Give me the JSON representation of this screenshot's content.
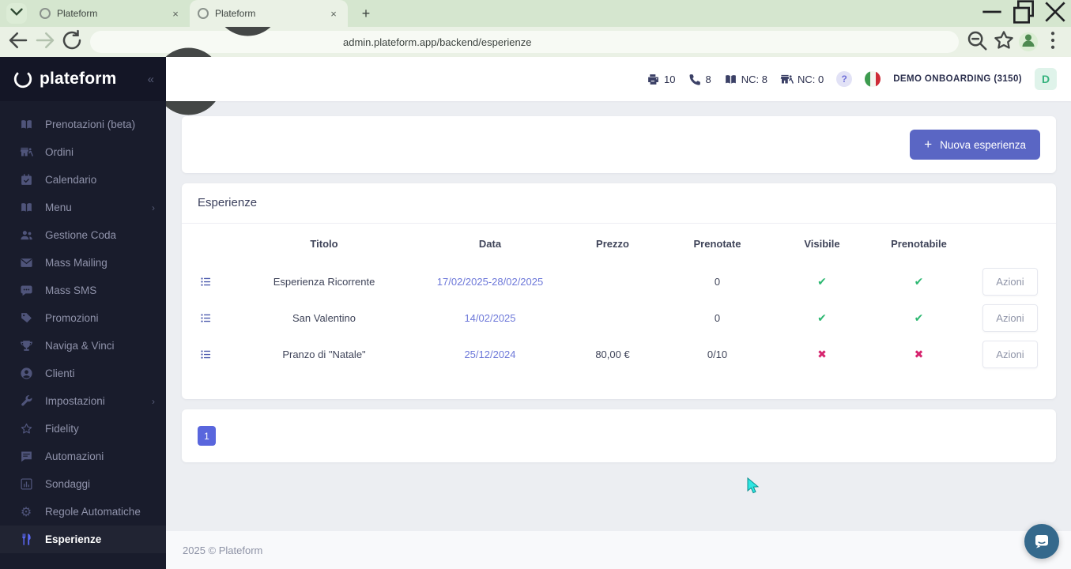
{
  "browser": {
    "tabs": [
      {
        "title": "Plateform"
      },
      {
        "title": "Plateform"
      }
    ],
    "url": "admin.plateform.app/backend/esperienze"
  },
  "sidebar": {
    "logo_text": "plateform",
    "collapse_glyph": "«",
    "items": [
      {
        "label": "Prenotazioni (beta)",
        "icon": "book"
      },
      {
        "label": "Ordini",
        "icon": "shop-walk"
      },
      {
        "label": "Calendario",
        "icon": "calendar"
      },
      {
        "label": "Menu",
        "icon": "book",
        "chevron": "›"
      },
      {
        "label": "Gestione Coda",
        "icon": "users"
      },
      {
        "label": "Mass Mailing",
        "icon": "envelope"
      },
      {
        "label": "Mass SMS",
        "icon": "chat"
      },
      {
        "label": "Promozioni",
        "icon": "tag"
      },
      {
        "label": "Naviga & Vinci",
        "icon": "trophy"
      },
      {
        "label": "Clienti",
        "icon": "user-circle"
      },
      {
        "label": "Impostazioni",
        "icon": "wrench",
        "chevron": "›"
      },
      {
        "label": "Fidelity",
        "icon": "star"
      },
      {
        "label": "Automazioni",
        "icon": "message-square"
      },
      {
        "label": "Sondaggi",
        "icon": "bar-chart"
      },
      {
        "label": "Regole Automatiche",
        "icon": "gear"
      },
      {
        "label": "Esperienze",
        "icon": "restaurant",
        "active": true
      }
    ]
  },
  "topbar": {
    "stats": [
      {
        "icon": "pos-printer",
        "value": "10"
      },
      {
        "icon": "phone",
        "value": "8"
      },
      {
        "icon": "book",
        "value": "NC: 8"
      },
      {
        "icon": "shop-walk",
        "value": "NC: 0"
      }
    ],
    "help_label": "?",
    "flag": "italy",
    "account_name": "DEMO ONBOARDING (3150)",
    "avatar_letter": "D"
  },
  "toolbar_card": {
    "new_button_label": "Nuova esperienza",
    "plus_glyph": "+"
  },
  "table_card": {
    "title": "Esperienze",
    "columns": [
      "Titolo",
      "Data",
      "Prezzo",
      "Prenotate",
      "Visibile",
      "Prenotabile"
    ],
    "rows": [
      {
        "titolo": "Esperienza Ricorrente",
        "data": "17/02/2025-28/02/2025",
        "prezzo": "",
        "prenotate": "0",
        "visibile": true,
        "prenotabile": true,
        "azioni_label": "Azioni"
      },
      {
        "titolo": "San Valentino",
        "data": "14/02/2025",
        "prezzo": "",
        "prenotate": "0",
        "visibile": true,
        "prenotabile": true,
        "azioni_label": "Azioni"
      },
      {
        "titolo": "Pranzo di \"Natale\"",
        "data": "25/12/2024",
        "prezzo": "80,00 €",
        "prenotate": "0/10",
        "visibile": false,
        "prenotabile": false,
        "azioni_label": "Azioni"
      }
    ]
  },
  "pagination": {
    "pages": [
      "1"
    ]
  },
  "footer": {
    "copyright": "2025 © Plateform"
  },
  "colors": {
    "accent_indigo": "#5a66c4",
    "pagination_indigo": "#5966dd",
    "success_green": "#2eb872",
    "danger_pink": "#d6246e",
    "sidebar_bg": "#191c2c",
    "active_icon": "#5b68f5",
    "chrome_green": "#d5e6cf",
    "chat_blue": "#35698c",
    "date_link": "#6d78d9"
  }
}
